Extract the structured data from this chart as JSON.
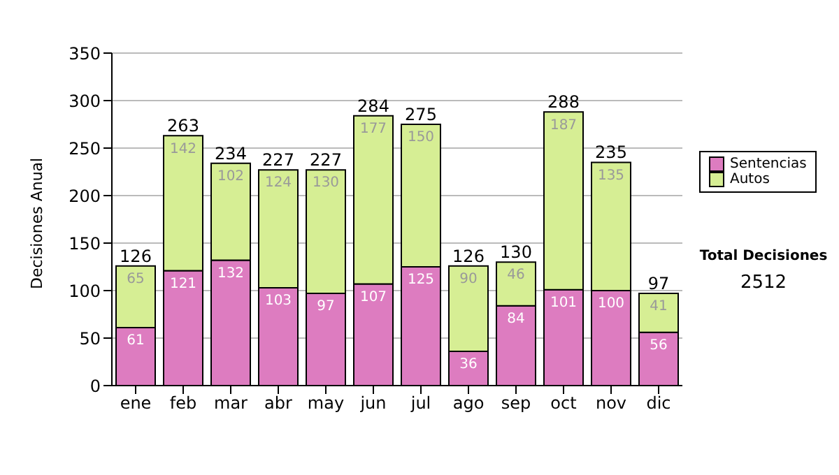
{
  "chart_data": {
    "type": "bar",
    "ylabel": "Decisiones Anual",
    "categories": [
      "ene",
      "feb",
      "mar",
      "abr",
      "may",
      "jun",
      "jul",
      "ago",
      "sep",
      "oct",
      "nov",
      "dic"
    ],
    "series": [
      {
        "name": "Sentencias",
        "color": "#dd7cc0",
        "values": [
          61,
          121,
          132,
          103,
          97,
          107,
          125,
          36,
          84,
          101,
          100,
          56
        ]
      },
      {
        "name": "Autos",
        "color": "#d6ee94",
        "values": [
          65,
          142,
          102,
          124,
          130,
          177,
          150,
          90,
          46,
          187,
          135,
          41
        ]
      }
    ],
    "stacked": true,
    "ylim": [
      0,
      350
    ],
    "yticks": [
      0,
      50,
      100,
      150,
      200,
      250,
      300,
      350
    ],
    "grid": "y",
    "legend": "right",
    "data_labels": true,
    "totals": [
      "126",
      "263",
      "234",
      "227",
      "227",
      "284",
      "275",
      "126",
      "130",
      "288",
      "235",
      "97"
    ],
    "annotations": [
      "Total Decisiones",
      "2512"
    ]
  }
}
